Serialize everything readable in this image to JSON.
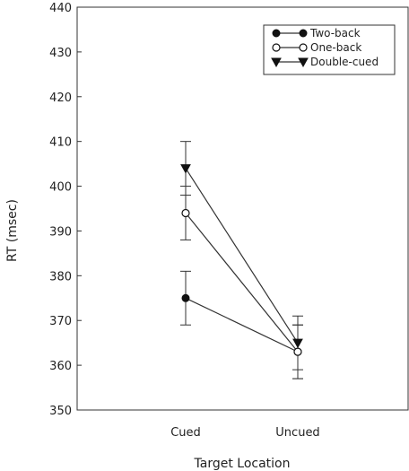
{
  "chart_data": {
    "type": "line",
    "title": "",
    "xlabel": "Target Location",
    "ylabel": "RT (msec)",
    "categories": [
      "Cued",
      "Uncued"
    ],
    "ylim": [
      350,
      440
    ],
    "yticks": [
      350,
      360,
      370,
      380,
      390,
      400,
      410,
      420,
      430,
      440
    ],
    "grid": false,
    "legend_position": "top-right",
    "series": [
      {
        "name": "Two-back",
        "marker": "filled-circle",
        "values": [
          375,
          363
        ],
        "error": [
          6,
          6
        ]
      },
      {
        "name": "One-back",
        "marker": "open-circle",
        "values": [
          394,
          363
        ],
        "error": [
          6,
          6
        ]
      },
      {
        "name": "Double-cued",
        "marker": "filled-triangle-down",
        "values": [
          404,
          365
        ],
        "error": [
          6,
          6
        ]
      }
    ],
    "colors": {
      "line": "#333333",
      "marker": "#111111",
      "axis": "#333333"
    }
  }
}
